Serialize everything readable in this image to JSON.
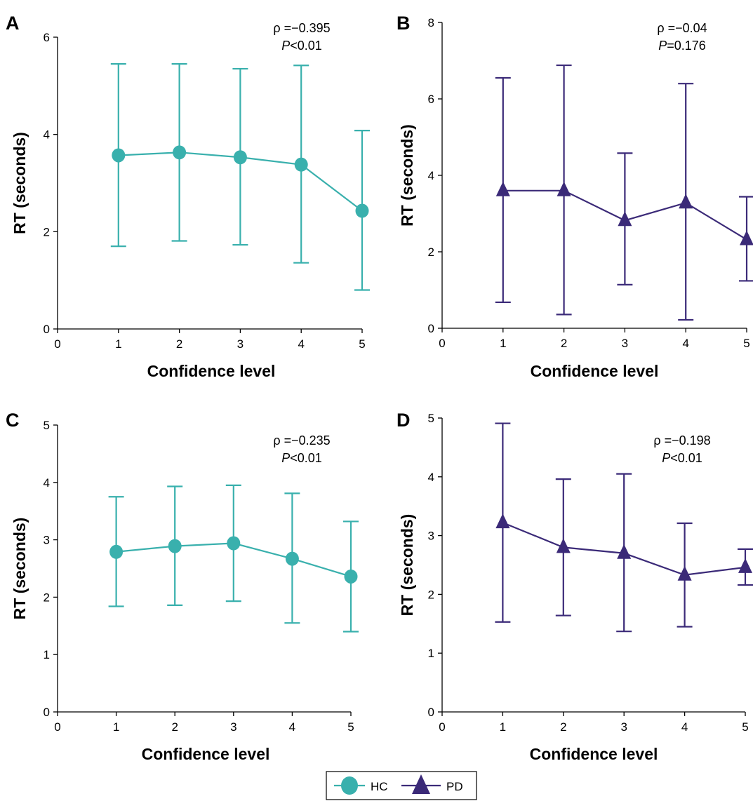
{
  "colors": {
    "HC": "#39b0ad",
    "PD": "#3b2a78",
    "axis": "#000000"
  },
  "legend": {
    "items": [
      {
        "label": "HC",
        "marker": "circle",
        "color": "#39b0ad"
      },
      {
        "label": "PD",
        "marker": "triangle",
        "color": "#3b2a78"
      }
    ]
  },
  "chart_data": [
    {
      "panel": "A",
      "type": "line",
      "group": "HC",
      "xlabel": "Confidence level",
      "ylabel": "RT (seconds)",
      "xlim": [
        0,
        5
      ],
      "ylim": [
        0,
        6
      ],
      "xticks": [
        "0",
        "1",
        "2",
        "3",
        "4",
        "5"
      ],
      "yticks": [
        "0",
        "2",
        "4",
        "6"
      ],
      "x": [
        1,
        2,
        3,
        4,
        5
      ],
      "y": [
        3.57,
        3.63,
        3.53,
        3.38,
        2.43
      ],
      "err_low": [
        1.7,
        1.81,
        1.73,
        1.36,
        0.8
      ],
      "err_high": [
        5.45,
        5.45,
        5.35,
        5.42,
        4.08
      ],
      "stat_line1": "ρ =−0.395",
      "stat_p_symbol": "P",
      "stat_p_value": "<0.01"
    },
    {
      "panel": "B",
      "type": "line",
      "group": "PD",
      "xlabel": "Confidence level",
      "ylabel": "RT (seconds)",
      "xlim": [
        0,
        5
      ],
      "ylim": [
        0,
        8
      ],
      "xticks": [
        "0",
        "1",
        "2",
        "3",
        "4",
        "5"
      ],
      "yticks": [
        "0",
        "2",
        "4",
        "6",
        "8"
      ],
      "x": [
        1,
        2,
        3,
        4,
        5
      ],
      "y": [
        3.6,
        3.6,
        2.82,
        3.28,
        2.32
      ],
      "err_low": [
        0.68,
        0.36,
        1.14,
        0.22,
        1.24
      ],
      "err_high": [
        6.55,
        6.88,
        4.58,
        6.4,
        3.44
      ],
      "stat_line1": "ρ =−0.04",
      "stat_p_symbol": "P",
      "stat_p_value": "=0.176"
    },
    {
      "panel": "C",
      "type": "line",
      "group": "HC",
      "xlabel": "Confidence level",
      "ylabel": "RT (seconds)",
      "xlim": [
        0,
        5
      ],
      "ylim": [
        0,
        5
      ],
      "xticks": [
        "0",
        "1",
        "2",
        "3",
        "4",
        "5"
      ],
      "yticks": [
        "0",
        "1",
        "2",
        "3",
        "4",
        "5"
      ],
      "x": [
        1,
        2,
        3,
        4,
        5
      ],
      "y": [
        2.79,
        2.89,
        2.94,
        2.67,
        2.36
      ],
      "err_low": [
        1.84,
        1.86,
        1.93,
        1.55,
        1.4
      ],
      "err_high": [
        3.75,
        3.93,
        3.95,
        3.81,
        3.32
      ],
      "stat_line1": "ρ =−0.235",
      "stat_p_symbol": "P",
      "stat_p_value": "<0.01"
    },
    {
      "panel": "D",
      "type": "line",
      "group": "PD",
      "xlabel": "Confidence level",
      "ylabel": "RT (seconds)",
      "xlim": [
        0,
        5
      ],
      "ylim": [
        0,
        5
      ],
      "xticks": [
        "0",
        "1",
        "2",
        "3",
        "4",
        "5"
      ],
      "yticks": [
        "0",
        "1",
        "2",
        "3",
        "4",
        "5"
      ],
      "x": [
        1,
        2,
        3,
        4,
        5
      ],
      "y": [
        3.22,
        2.8,
        2.7,
        2.33,
        2.46
      ],
      "err_low": [
        1.53,
        1.64,
        1.37,
        1.45,
        2.16
      ],
      "err_high": [
        4.91,
        3.96,
        4.05,
        3.21,
        2.77
      ],
      "stat_line1": "ρ =−0.198",
      "stat_p_symbol": "P",
      "stat_p_value": "<0.01"
    }
  ]
}
